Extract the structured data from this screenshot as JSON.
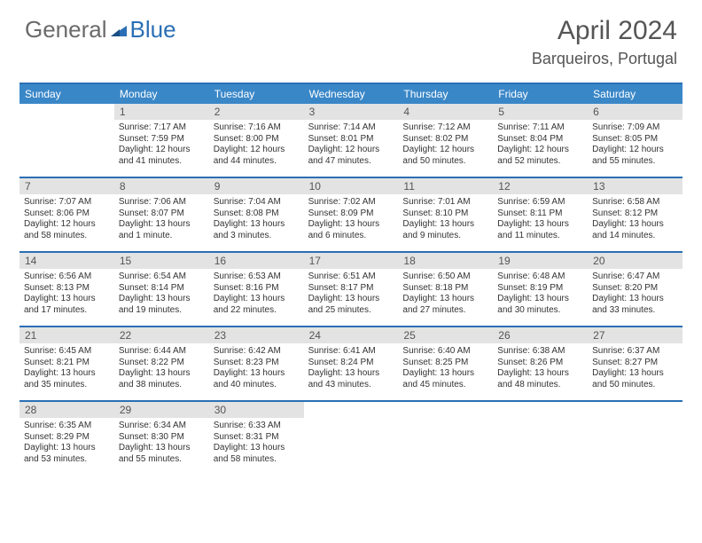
{
  "logo": {
    "left": "General",
    "right": "Blue"
  },
  "title": "April 2024",
  "location": "Barqueiros, Portugal",
  "weekdays": [
    "Sunday",
    "Monday",
    "Tuesday",
    "Wednesday",
    "Thursday",
    "Friday",
    "Saturday"
  ],
  "colors": {
    "header_bg": "#3a87c8",
    "border": "#2a6fb5",
    "daynum_bg": "#e3e3e3",
    "text": "#333333",
    "title_text": "#555555"
  },
  "weeks": [
    [
      {
        "blank": true
      },
      {
        "n": "1",
        "sr": "7:17 AM",
        "ss": "7:59 PM",
        "dl": "12 hours and 41 minutes."
      },
      {
        "n": "2",
        "sr": "7:16 AM",
        "ss": "8:00 PM",
        "dl": "12 hours and 44 minutes."
      },
      {
        "n": "3",
        "sr": "7:14 AM",
        "ss": "8:01 PM",
        "dl": "12 hours and 47 minutes."
      },
      {
        "n": "4",
        "sr": "7:12 AM",
        "ss": "8:02 PM",
        "dl": "12 hours and 50 minutes."
      },
      {
        "n": "5",
        "sr": "7:11 AM",
        "ss": "8:04 PM",
        "dl": "12 hours and 52 minutes."
      },
      {
        "n": "6",
        "sr": "7:09 AM",
        "ss": "8:05 PM",
        "dl": "12 hours and 55 minutes."
      }
    ],
    [
      {
        "n": "7",
        "sr": "7:07 AM",
        "ss": "8:06 PM",
        "dl": "12 hours and 58 minutes."
      },
      {
        "n": "8",
        "sr": "7:06 AM",
        "ss": "8:07 PM",
        "dl": "13 hours and 1 minute."
      },
      {
        "n": "9",
        "sr": "7:04 AM",
        "ss": "8:08 PM",
        "dl": "13 hours and 3 minutes."
      },
      {
        "n": "10",
        "sr": "7:02 AM",
        "ss": "8:09 PM",
        "dl": "13 hours and 6 minutes."
      },
      {
        "n": "11",
        "sr": "7:01 AM",
        "ss": "8:10 PM",
        "dl": "13 hours and 9 minutes."
      },
      {
        "n": "12",
        "sr": "6:59 AM",
        "ss": "8:11 PM",
        "dl": "13 hours and 11 minutes."
      },
      {
        "n": "13",
        "sr": "6:58 AM",
        "ss": "8:12 PM",
        "dl": "13 hours and 14 minutes."
      }
    ],
    [
      {
        "n": "14",
        "sr": "6:56 AM",
        "ss": "8:13 PM",
        "dl": "13 hours and 17 minutes."
      },
      {
        "n": "15",
        "sr": "6:54 AM",
        "ss": "8:14 PM",
        "dl": "13 hours and 19 minutes."
      },
      {
        "n": "16",
        "sr": "6:53 AM",
        "ss": "8:16 PM",
        "dl": "13 hours and 22 minutes."
      },
      {
        "n": "17",
        "sr": "6:51 AM",
        "ss": "8:17 PM",
        "dl": "13 hours and 25 minutes."
      },
      {
        "n": "18",
        "sr": "6:50 AM",
        "ss": "8:18 PM",
        "dl": "13 hours and 27 minutes."
      },
      {
        "n": "19",
        "sr": "6:48 AM",
        "ss": "8:19 PM",
        "dl": "13 hours and 30 minutes."
      },
      {
        "n": "20",
        "sr": "6:47 AM",
        "ss": "8:20 PM",
        "dl": "13 hours and 33 minutes."
      }
    ],
    [
      {
        "n": "21",
        "sr": "6:45 AM",
        "ss": "8:21 PM",
        "dl": "13 hours and 35 minutes."
      },
      {
        "n": "22",
        "sr": "6:44 AM",
        "ss": "8:22 PM",
        "dl": "13 hours and 38 minutes."
      },
      {
        "n": "23",
        "sr": "6:42 AM",
        "ss": "8:23 PM",
        "dl": "13 hours and 40 minutes."
      },
      {
        "n": "24",
        "sr": "6:41 AM",
        "ss": "8:24 PM",
        "dl": "13 hours and 43 minutes."
      },
      {
        "n": "25",
        "sr": "6:40 AM",
        "ss": "8:25 PM",
        "dl": "13 hours and 45 minutes."
      },
      {
        "n": "26",
        "sr": "6:38 AM",
        "ss": "8:26 PM",
        "dl": "13 hours and 48 minutes."
      },
      {
        "n": "27",
        "sr": "6:37 AM",
        "ss": "8:27 PM",
        "dl": "13 hours and 50 minutes."
      }
    ],
    [
      {
        "n": "28",
        "sr": "6:35 AM",
        "ss": "8:29 PM",
        "dl": "13 hours and 53 minutes."
      },
      {
        "n": "29",
        "sr": "6:34 AM",
        "ss": "8:30 PM",
        "dl": "13 hours and 55 minutes."
      },
      {
        "n": "30",
        "sr": "6:33 AM",
        "ss": "8:31 PM",
        "dl": "13 hours and 58 minutes."
      },
      {
        "blank": true
      },
      {
        "blank": true
      },
      {
        "blank": true
      },
      {
        "blank": true
      }
    ]
  ],
  "labels": {
    "sunrise": "Sunrise:",
    "sunset": "Sunset:",
    "daylight": "Daylight:"
  }
}
